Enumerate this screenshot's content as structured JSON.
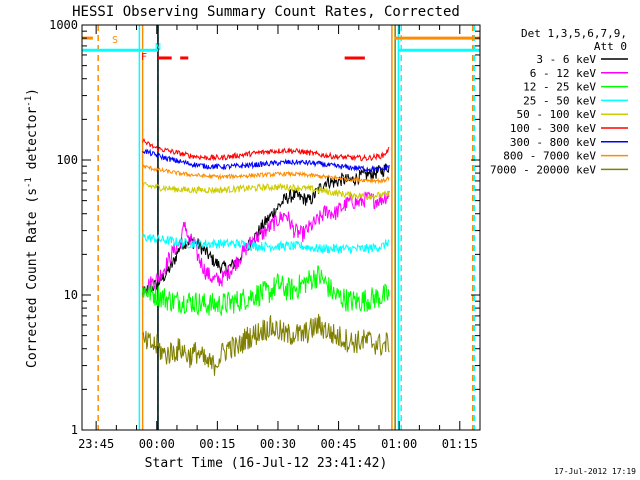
{
  "chart_data": {
    "type": "line",
    "title": "HESSI Observing Summary Count Rates, Corrected",
    "xlabel": "Start Time (16-Jul-12 23:41:42)",
    "ylabel_main": "Corrected Count Rate (s",
    "ylabel_sup1": "-1",
    "ylabel_mid": " detector",
    "ylabel_sup2": "-1",
    "ylabel_end": ")",
    "yscale": "log",
    "ylim": [
      1,
      1000
    ],
    "xlim_minutes": [
      -18.5,
      80
    ],
    "x_ticks": [
      {
        "minute": -15,
        "label": "23:45"
      },
      {
        "minute": 0,
        "label": "00:00"
      },
      {
        "minute": 15,
        "label": "00:15"
      },
      {
        "minute": 30,
        "label": "00:30"
      },
      {
        "minute": 45,
        "label": "00:45"
      },
      {
        "minute": 60,
        "label": "01:00"
      },
      {
        "minute": 75,
        "label": "01:15"
      }
    ],
    "y_ticks": [
      {
        "value": 1,
        "label": "1"
      },
      {
        "value": 10,
        "label": "10"
      },
      {
        "value": 100,
        "label": "100"
      },
      {
        "value": 1000,
        "label": "1000"
      }
    ],
    "legend_title_1": "Det 1,3,5,6,7,9,",
    "legend_title_2": "Att 0",
    "legend_position": "right",
    "timestamp": "17-Jul-2012 17:19",
    "series": [
      {
        "name": "3 - 6 keV",
        "color": "#000000",
        "x": [
          -3.5,
          -2,
          0,
          2,
          4,
          6,
          8,
          10,
          12,
          14,
          16,
          18,
          20,
          22,
          24,
          26,
          28,
          30,
          32,
          34,
          36,
          38,
          40,
          42,
          44,
          46,
          48,
          50,
          52,
          54,
          56,
          57.5
        ],
        "values": [
          10,
          11,
          12,
          14,
          17,
          24,
          25,
          24,
          21,
          18,
          16,
          16,
          18,
          22,
          26,
          32,
          38,
          45,
          52,
          55,
          52,
          50,
          60,
          70,
          68,
          72,
          70,
          75,
          78,
          80,
          84,
          90
        ]
      },
      {
        "name": "6 - 12 keV",
        "color": "#ff00ff",
        "x": [
          -3.5,
          -2,
          0,
          2,
          4,
          6,
          7,
          8,
          9,
          10,
          12,
          14,
          16,
          18,
          20,
          22,
          24,
          26,
          28,
          30,
          32,
          34,
          36,
          38,
          40,
          42,
          44,
          46,
          48,
          50,
          52,
          54,
          56,
          57.5
        ],
        "values": [
          11,
          12,
          13,
          16,
          21,
          25,
          35,
          24,
          26,
          20,
          15,
          13,
          13,
          15,
          18,
          22,
          26,
          28,
          32,
          36,
          40,
          30,
          28,
          32,
          36,
          42,
          40,
          45,
          50,
          48,
          52,
          50,
          52,
          56
        ]
      },
      {
        "name": "12 - 25 keV",
        "color": "#00ff00",
        "x": [
          -3.5,
          0,
          4,
          8,
          12,
          16,
          20,
          24,
          28,
          30,
          32,
          34,
          36,
          38,
          40,
          42,
          44,
          46,
          48,
          50,
          54,
          57.5
        ],
        "values": [
          11,
          10,
          9,
          9,
          8.5,
          8.5,
          9,
          10,
          10.5,
          12,
          11,
          11,
          12,
          13,
          14,
          12,
          10,
          9.5,
          9,
          9,
          9.5,
          10
        ]
      },
      {
        "name": "25 - 50 keV",
        "color": "#00ffff",
        "x": [
          -3.5,
          0,
          4,
          8,
          12,
          16,
          20,
          24,
          28,
          32,
          36,
          40,
          44,
          48,
          52,
          56,
          57.5
        ],
        "values": [
          27,
          26,
          25,
          24,
          24,
          24,
          24,
          23,
          23,
          23,
          23,
          22,
          22,
          22,
          22,
          23,
          25
        ]
      },
      {
        "name": "50 - 100 keV",
        "color": "#cccc00",
        "x": [
          -3.5,
          0,
          4,
          8,
          12,
          16,
          20,
          24,
          28,
          32,
          36,
          40,
          44,
          48,
          52,
          56,
          57.5
        ],
        "values": [
          65,
          63,
          61,
          60,
          60,
          60,
          61,
          62,
          63,
          63,
          62,
          60,
          57,
          55,
          54,
          55,
          56
        ]
      },
      {
        "name": "100 - 300 keV",
        "color": "#ff0000",
        "x": [
          -3.5,
          -2,
          0,
          4,
          8,
          12,
          16,
          20,
          24,
          28,
          32,
          36,
          40,
          44,
          48,
          52,
          56,
          57.5
        ],
        "values": [
          140,
          130,
          122,
          115,
          108,
          104,
          104,
          108,
          112,
          116,
          118,
          115,
          110,
          106,
          104,
          103,
          108,
          120
        ]
      },
      {
        "name": "300 - 800 keV",
        "color": "#0000ff",
        "x": [
          -3.5,
          0,
          4,
          8,
          12,
          16,
          20,
          24,
          28,
          32,
          36,
          40,
          44,
          48,
          52,
          56,
          57.5
        ],
        "values": [
          118,
          108,
          100,
          94,
          90,
          89,
          90,
          92,
          94,
          96,
          96,
          94,
          90,
          88,
          86,
          85,
          90
        ]
      },
      {
        "name": "800 - 7000 keV",
        "color": "#ff8c00",
        "x": [
          -3.5,
          0,
          4,
          8,
          12,
          16,
          20,
          24,
          28,
          32,
          36,
          40,
          44,
          48,
          52,
          56,
          57.5
        ],
        "values": [
          90,
          85,
          81,
          78,
          76,
          75,
          76,
          77,
          78,
          79,
          78,
          76,
          74,
          72,
          71,
          70,
          74
        ]
      },
      {
        "name": "7000 - 20000 keV",
        "color": "#808000",
        "x": [
          -3.5,
          0,
          2,
          4,
          6,
          8,
          10,
          12,
          14,
          16,
          18,
          20,
          22,
          24,
          26,
          28,
          30,
          32,
          34,
          36,
          38,
          40,
          42,
          44,
          46,
          48,
          50,
          52,
          54,
          56,
          57.5
        ],
        "values": [
          4.5,
          4.2,
          3.6,
          3.8,
          4.0,
          3.5,
          3.8,
          3.2,
          3.0,
          3.6,
          4.2,
          4.0,
          4.8,
          5.0,
          5.5,
          5.8,
          5.5,
          5.0,
          5.2,
          5.0,
          5.5,
          6.0,
          5.5,
          5.0,
          4.8,
          4.5,
          4.5,
          4.6,
          4.4,
          4.2,
          4.5
        ]
      }
    ],
    "flags": [
      {
        "label": "S",
        "color": "#ff8c00",
        "value": 800,
        "segments": [
          [
            -18.5,
            -15.8
          ],
          [
            58.8,
            80
          ]
        ]
      },
      {
        "label": "N",
        "color": "#00ffff",
        "value": 650,
        "segments": [
          [
            -18.5,
            0.3
          ],
          [
            59.8,
            80
          ]
        ]
      },
      {
        "label": "F",
        "color": "#ff0000",
        "value": 570,
        "segments": [
          [
            0.3,
            3.7
          ],
          [
            5.8,
            7.8
          ],
          [
            46.5,
            51.5
          ]
        ]
      }
    ],
    "vertical_markers": [
      {
        "minute": -14.5,
        "color": "#ff8c00",
        "style": "dashed"
      },
      {
        "minute": -4.3,
        "color": "#00ffff",
        "style": "solid"
      },
      {
        "minute": -3.5,
        "color": "#ff8c00",
        "style": "solid"
      },
      {
        "minute": 0.3,
        "color": "#00ffff",
        "style": "dashed"
      },
      {
        "minute": 0.3,
        "color": "#000000",
        "style": "solid"
      },
      {
        "minute": 58.2,
        "color": "#ff8c00",
        "style": "solid"
      },
      {
        "minute": 59.0,
        "color": "#808000",
        "style": "solid"
      },
      {
        "minute": 59.8,
        "color": "#00ffff",
        "style": "solid"
      },
      {
        "minute": 60.5,
        "color": "#00ffff",
        "style": "dashed"
      },
      {
        "minute": 78.2,
        "color": "#ff8c00",
        "style": "dashed"
      },
      {
        "minute": 78.6,
        "color": "#00ffff",
        "style": "dashed"
      }
    ]
  }
}
